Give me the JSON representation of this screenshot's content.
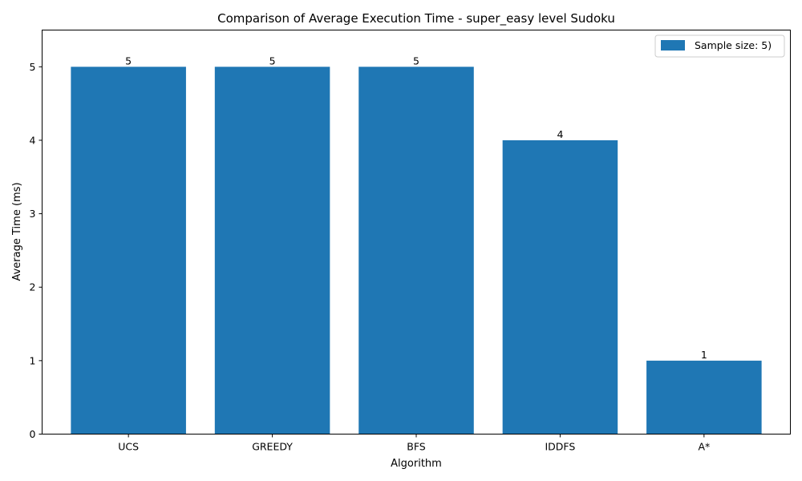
{
  "chart_data": {
    "type": "bar",
    "title": "Comparison of Average Execution Time - super_easy level Sudoku",
    "xlabel": "Algorithm",
    "ylabel": "Average Time (ms)",
    "categories": [
      "UCS",
      "GREEDY",
      "BFS",
      "IDDFS",
      "A*"
    ],
    "series": [
      {
        "name": "Sample size: 5)",
        "values": [
          5,
          5,
          5,
          4,
          1
        ],
        "color": "#1f77b4"
      }
    ],
    "data_labels": [
      "5",
      "5",
      "5",
      "4",
      "1"
    ],
    "ylim": [
      0,
      5.5
    ],
    "yticks": [
      0,
      1,
      2,
      3,
      4,
      5
    ],
    "grid": false,
    "legend_position": "top-right"
  }
}
